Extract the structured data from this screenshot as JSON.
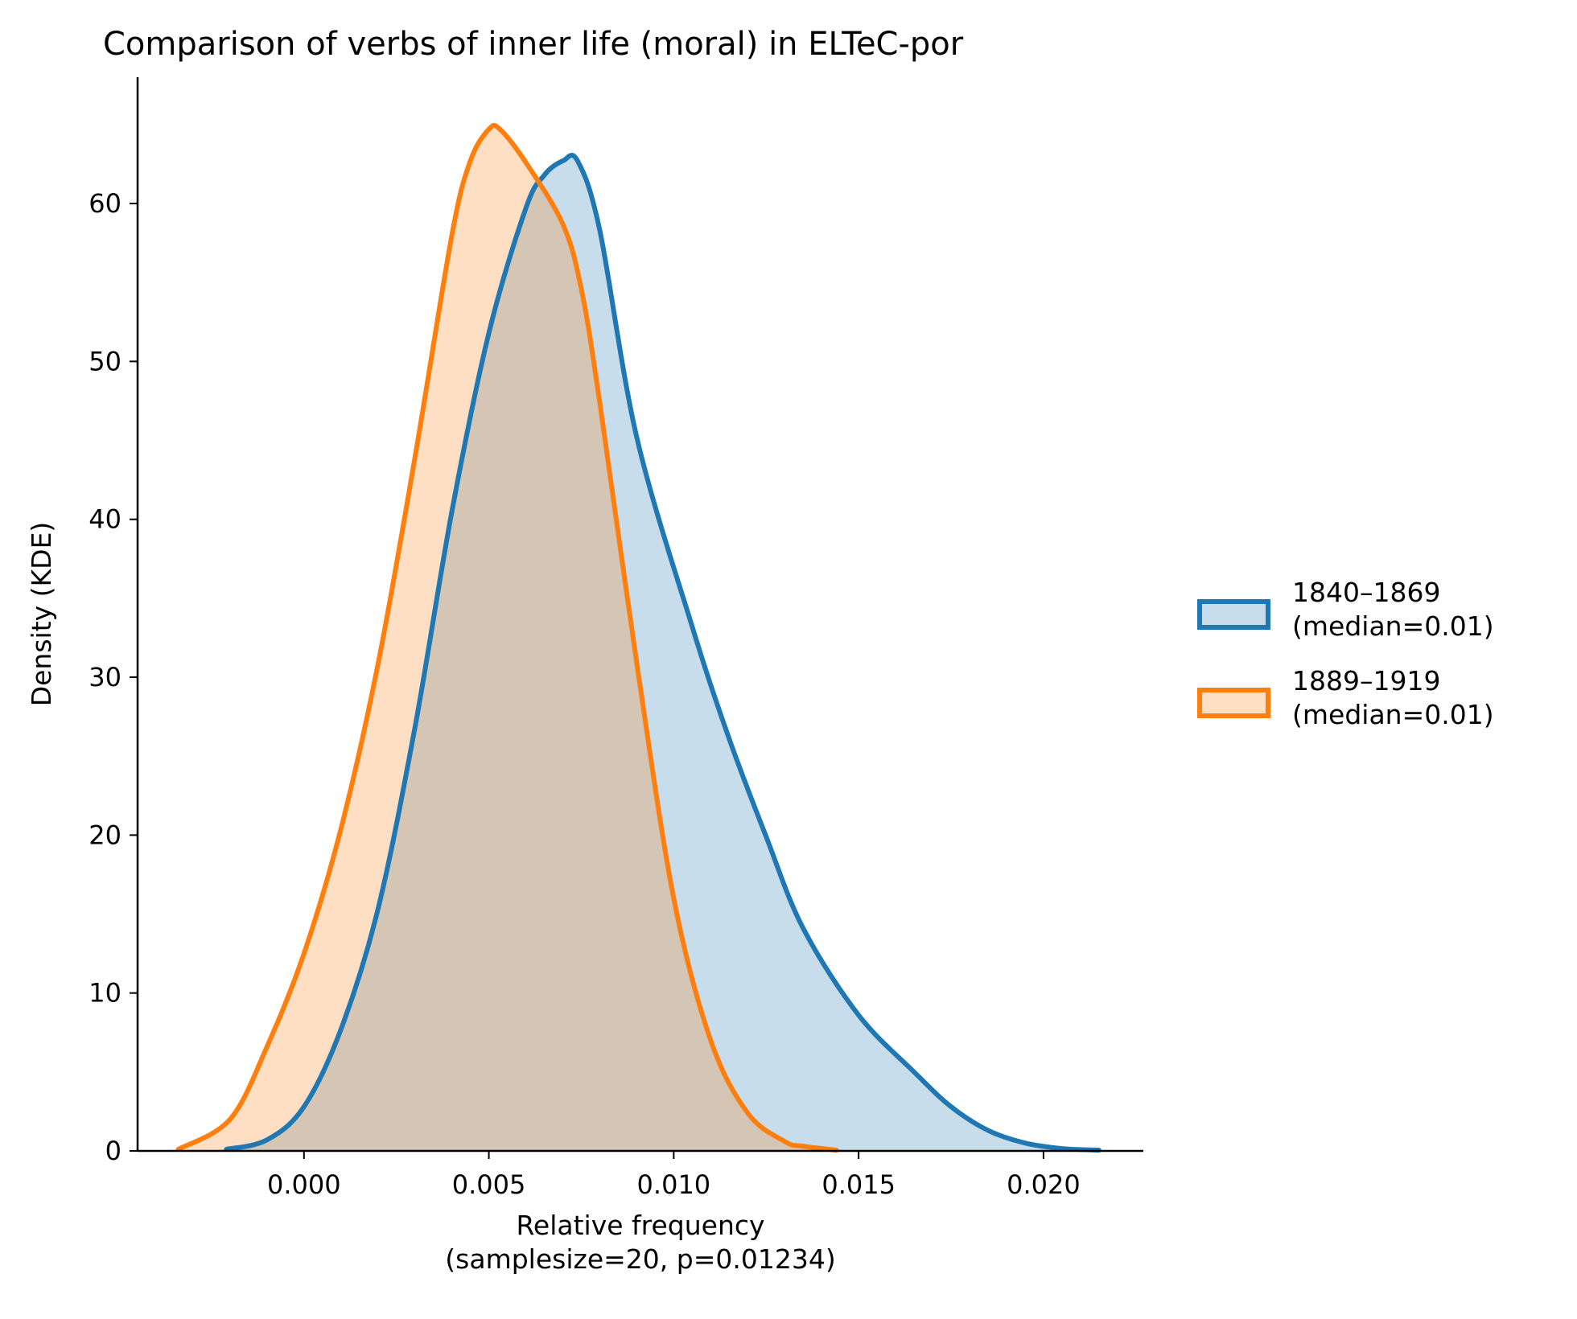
{
  "chart_data": {
    "type": "area",
    "title": "Comparison of verbs of inner life (moral) in ELTeC-por",
    "xlabel": "Relative frequency",
    "xlabel_line2": "(samplesize=20, p=0.01234)",
    "ylabel": "Density (KDE)",
    "xlim": [
      -0.0045,
      0.0227
    ],
    "ylim": [
      0,
      68
    ],
    "xticks": [
      0.0,
      0.005,
      0.01,
      0.015,
      0.02
    ],
    "xtick_labels": [
      "0.000",
      "0.005",
      "0.010",
      "0.015",
      "0.020"
    ],
    "yticks": [
      0,
      10,
      20,
      30,
      40,
      50,
      60
    ],
    "ytick_labels": [
      "0",
      "10",
      "20",
      "30",
      "40",
      "50",
      "60"
    ],
    "legend_position": "right",
    "series": [
      {
        "name": "1840–1869",
        "legend_line2": "(median=0.01)",
        "color": "#1f77b4",
        "x": [
          -0.0021,
          -0.001,
          0.0,
          0.001,
          0.002,
          0.003,
          0.004,
          0.005,
          0.006,
          0.0065,
          0.007,
          0.0074,
          0.008,
          0.009,
          0.0105,
          0.0115,
          0.0125,
          0.0135,
          0.015,
          0.0165,
          0.0175,
          0.0185,
          0.0195,
          0.0205,
          0.0215
        ],
        "y": [
          0.1,
          0.7,
          2.8,
          7.7,
          15.3,
          26.8,
          40.5,
          51.8,
          59.7,
          61.8,
          62.7,
          62.7,
          58.3,
          45.2,
          33.2,
          26.1,
          19.9,
          14.1,
          8.6,
          5.0,
          2.8,
          1.3,
          0.5,
          0.15,
          0.05
        ]
      },
      {
        "name": "1889–1919",
        "legend_line2": "(median=0.01)",
        "color": "#ff7f0e",
        "x": [
          -0.0034,
          -0.002,
          -0.001,
          0.0,
          0.001,
          0.002,
          0.003,
          0.004,
          0.0045,
          0.005,
          0.0053,
          0.006,
          0.007,
          0.0075,
          0.008,
          0.009,
          0.01,
          0.011,
          0.012,
          0.013,
          0.0135,
          0.0144
        ],
        "y": [
          0.1,
          2.0,
          6.6,
          12.5,
          20.4,
          30.8,
          43.9,
          58.0,
          62.7,
          64.7,
          64.7,
          62.6,
          58.7,
          54.6,
          47.4,
          30.9,
          16.0,
          7.0,
          2.4,
          0.6,
          0.3,
          0.05
        ]
      }
    ]
  }
}
